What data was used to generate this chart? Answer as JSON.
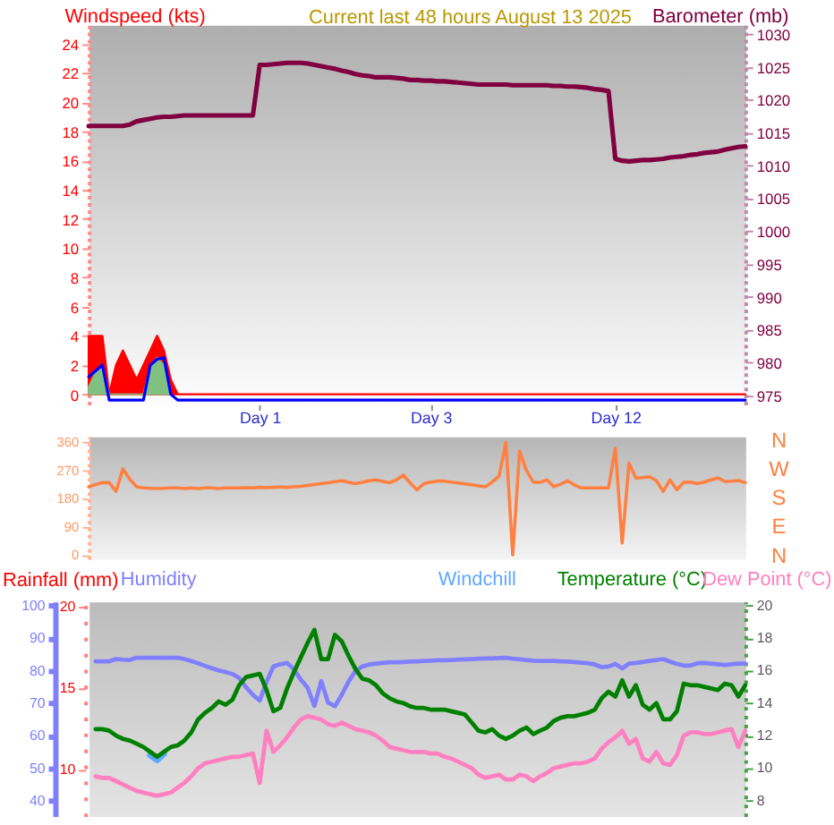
{
  "chart_data": [
    {
      "type": "line",
      "title": "Current last 48 hours August 13 2025",
      "ylabel": "Windspeed (kts)",
      "y2label": "Barometer (mb)",
      "categories": [
        null,
        null,
        null,
        null,
        null,
        null,
        null,
        null,
        null,
        null,
        null,
        null,
        null,
        null,
        null,
        null,
        null,
        null,
        null,
        null,
        null,
        null,
        null,
        null,
        null,
        "Day 1",
        null,
        null,
        null,
        null,
        null,
        null,
        null,
        null,
        null,
        null,
        null,
        null,
        null,
        null,
        null,
        null,
        null,
        null,
        null,
        null,
        null,
        null,
        null,
        null,
        "Day 3",
        null,
        null,
        null,
        null,
        null,
        null,
        null,
        null,
        null,
        null,
        null,
        null,
        null,
        null,
        null,
        null,
        null,
        null,
        null,
        null,
        null,
        null,
        null,
        null,
        null,
        null,
        "Day 12",
        null,
        null,
        null,
        null,
        null,
        null,
        null,
        null,
        null,
        null,
        null,
        null,
        null,
        null,
        null,
        null,
        null,
        null,
        null
      ],
      "ylim": [
        -0.7,
        25.3
      ],
      "yticks": [
        0,
        2,
        4,
        6,
        8,
        10,
        12,
        14,
        16,
        18,
        20,
        22,
        24
      ],
      "y2lim": [
        973.6,
        1031.4
      ],
      "y2ticks": [
        975,
        980,
        985,
        990,
        995,
        1000,
        1005,
        1010,
        1015,
        1020,
        1025,
        1030
      ],
      "series": [
        {
          "type": "area",
          "color": "#ff0000",
          "values": [
            4,
            4,
            4,
            0,
            2,
            3,
            2,
            1,
            2,
            3,
            4,
            3,
            1,
            0,
            0,
            0,
            0,
            0,
            0,
            0,
            0,
            0,
            0,
            0,
            0,
            0,
            0,
            0,
            0,
            0,
            0,
            0,
            0,
            0,
            0,
            0,
            0,
            0,
            0,
            0,
            0,
            0,
            0,
            0,
            0,
            0,
            0,
            0,
            0,
            0,
            0,
            0,
            0,
            0,
            0,
            0,
            0,
            0,
            0,
            0,
            0,
            0,
            0,
            0,
            0,
            0,
            0,
            0,
            0,
            0,
            0,
            0,
            0,
            0,
            0,
            0,
            0,
            0,
            0,
            0,
            0,
            0,
            0,
            0,
            0,
            0,
            0,
            0,
            0,
            0,
            0,
            0,
            0,
            0,
            0,
            0,
            0
          ]
        },
        {
          "type": "area",
          "color": "#80c080",
          "values": [
            0.5,
            1.5,
            2.0,
            0,
            0,
            0,
            0,
            0,
            0,
            2.0,
            2.5,
            2.0,
            0,
            null,
            null,
            null,
            null,
            null,
            null,
            null,
            null,
            null,
            null,
            null,
            null,
            null,
            null,
            null,
            null,
            null,
            null,
            null,
            null,
            null,
            null,
            null,
            null,
            null,
            null,
            null,
            null,
            null,
            null,
            null,
            null,
            null,
            null,
            null,
            null,
            null,
            null,
            null,
            null,
            null,
            null,
            null,
            null,
            null,
            null,
            null,
            null,
            null,
            null,
            null,
            null,
            null,
            null,
            null,
            null,
            null,
            null,
            null,
            null,
            null,
            null,
            null,
            null,
            null,
            null,
            null,
            null,
            null,
            null,
            null,
            null,
            null,
            null,
            null,
            null,
            null,
            null,
            null,
            null,
            null,
            null,
            null,
            null
          ]
        },
        {
          "type": "line",
          "color": "#0000ff",
          "values": [
            1.2,
            1.6,
            2.0,
            -0.4,
            -0.4,
            -0.4,
            -0.4,
            -0.4,
            -0.4,
            2.0,
            2.4,
            2.5,
            0.0,
            -0.4,
            -0.4,
            -0.4,
            -0.4,
            -0.4,
            -0.4,
            -0.4,
            -0.4,
            -0.4,
            -0.4,
            -0.4,
            -0.4,
            -0.4,
            -0.4,
            -0.4,
            -0.4,
            -0.4,
            -0.4,
            -0.4,
            -0.4,
            -0.4,
            -0.4,
            -0.4,
            -0.4,
            -0.4,
            -0.4,
            -0.4,
            -0.4,
            -0.4,
            -0.4,
            -0.4,
            -0.4,
            -0.4,
            -0.4,
            -0.4,
            -0.4,
            -0.4,
            -0.4,
            -0.4,
            -0.4,
            -0.4,
            -0.4,
            -0.4,
            -0.4,
            -0.4,
            -0.4,
            -0.4,
            -0.4,
            -0.4,
            -0.4,
            -0.4,
            -0.4,
            -0.4,
            -0.4,
            -0.4,
            -0.4,
            -0.4,
            -0.4,
            -0.4,
            -0.4,
            -0.4,
            -0.4,
            -0.4,
            -0.4,
            -0.4,
            -0.4,
            -0.4,
            -0.4,
            -0.4,
            -0.4,
            -0.4,
            -0.4,
            -0.4,
            -0.4,
            -0.4,
            -0.4,
            -0.4,
            -0.4,
            -0.4,
            -0.4,
            -0.4,
            -0.4,
            -0.4,
            -0.4
          ]
        },
        {
          "type": "line",
          "axis": "y2",
          "color": "#800040",
          "values": [
            1016.0,
            1016.0,
            1016.0,
            1016.0,
            1016.0,
            1016.0,
            1016.2,
            1016.7,
            1016.9,
            1017.1,
            1017.3,
            1017.4,
            1017.4,
            1017.5,
            1017.6,
            1017.6,
            1017.6,
            1017.6,
            1017.6,
            1017.6,
            1017.6,
            1017.6,
            1017.6,
            1017.6,
            1017.6,
            1025.3,
            1025.3,
            1025.4,
            1025.5,
            1025.6,
            1025.6,
            1025.6,
            1025.5,
            1025.3,
            1025.1,
            1024.9,
            1024.7,
            1024.4,
            1024.2,
            1023.9,
            1023.7,
            1023.6,
            1023.4,
            1023.4,
            1023.4,
            1023.3,
            1023.2,
            1023.0,
            1023.0,
            1022.9,
            1022.9,
            1022.8,
            1022.8,
            1022.7,
            1022.6,
            1022.5,
            1022.4,
            1022.3,
            1022.3,
            1022.3,
            1022.3,
            1022.3,
            1022.2,
            1022.2,
            1022.2,
            1022.2,
            1022.2,
            1022.2,
            1022.1,
            1022.1,
            1022.0,
            1022.0,
            1021.9,
            1021.8,
            1021.6,
            1021.5,
            1021.3,
            1011.0,
            1010.7,
            1010.6,
            1010.7,
            1010.8,
            1010.8,
            1010.9,
            1011.0,
            1011.2,
            1011.3,
            1011.4,
            1011.6,
            1011.7,
            1011.9,
            1012.0,
            1012.1,
            1012.4,
            1012.6,
            1012.8,
            1012.9
          ]
        }
      ]
    },
    {
      "type": "line",
      "categories": [
        null,
        null,
        null,
        null,
        null,
        null,
        null,
        null,
        null,
        null,
        null,
        null,
        null,
        null,
        null,
        null,
        null,
        null,
        null,
        null,
        null,
        null,
        null,
        null,
        null,
        null,
        null,
        null,
        null,
        null,
        null,
        null,
        null,
        null,
        null,
        null,
        null,
        null,
        null,
        null,
        null,
        null,
        null,
        null,
        null,
        null,
        null,
        null,
        null,
        null,
        null,
        null,
        null,
        null,
        null,
        null,
        null,
        null,
        null,
        null,
        null,
        null,
        null,
        null,
        null,
        null,
        null,
        null,
        null,
        null,
        null,
        null,
        null,
        null,
        null,
        null,
        null,
        null,
        null,
        null,
        null,
        null,
        null,
        null,
        null,
        null,
        null,
        null,
        null,
        null,
        null,
        null,
        null,
        null,
        null,
        null,
        null
      ],
      "ylim": [
        -13,
        379
      ],
      "yticks": [
        0,
        90,
        180,
        270,
        360
      ],
      "annotations": [
        "N",
        "W",
        "S",
        "E",
        "N"
      ],
      "series": [
        {
          "color": "#ff8040",
          "values": [
            218,
            225,
            231,
            231,
            203,
            275,
            242,
            218,
            214,
            213,
            212,
            213,
            214,
            214,
            212,
            214,
            212,
            214,
            214,
            212,
            214,
            214,
            214,
            215,
            214,
            216,
            215,
            216,
            217,
            216,
            218,
            219,
            222,
            225,
            228,
            231,
            234,
            237,
            232,
            228,
            232,
            237,
            240,
            235,
            231,
            240,
            255,
            230,
            208,
            228,
            233,
            236,
            236,
            233,
            230,
            227,
            224,
            221,
            218,
            233,
            252,
            360,
            0,
            332,
            270,
            233,
            232,
            240,
            218,
            226,
            237,
            224,
            214,
            214,
            214,
            214,
            214,
            341,
            38,
            294,
            246,
            247,
            250,
            237,
            203,
            240,
            208,
            232,
            233,
            228,
            233,
            240,
            246,
            235,
            236,
            238,
            231
          ]
        }
      ]
    },
    {
      "type": "line",
      "y3label": "Rainfall (mm)",
      "categories": [
        null,
        null,
        null,
        null,
        null,
        null,
        null,
        null,
        null,
        null,
        null,
        null,
        null,
        null,
        null,
        null,
        null,
        null,
        null,
        null,
        null,
        null,
        null,
        null,
        null,
        null,
        null,
        null,
        null,
        null,
        null,
        null,
        null,
        null,
        null,
        null,
        null,
        null,
        null,
        null,
        null,
        null,
        null,
        null,
        null,
        null,
        null,
        null,
        null,
        null,
        null,
        null,
        null,
        null,
        null,
        null,
        null,
        null,
        null,
        null,
        null,
        null,
        null,
        null,
        null,
        null,
        null,
        null,
        null,
        null,
        null,
        null,
        null,
        null,
        null,
        null,
        null,
        null,
        null,
        null,
        null,
        null,
        null,
        null,
        null,
        null,
        null,
        null,
        null,
        null,
        null,
        null,
        null,
        null,
        null,
        null,
        null
      ],
      "ylim": [
        35.3,
        101.3
      ],
      "yticks": [
        40,
        50,
        60,
        70,
        80,
        90,
        100
      ],
      "y2lim": [
        7.05,
        20.25
      ],
      "y2ticks": [
        8,
        10,
        12,
        14,
        16,
        18,
        20
      ],
      "y3lim": [
        7.17,
        20.3
      ],
      "y3ticks": [
        10,
        15,
        20
      ],
      "series": [
        {
          "name": "Humidity",
          "color": "#8080ff",
          "values": [
            null,
            82.9,
            82.9,
            82.9,
            83.6,
            83.4,
            83.3,
            84,
            84,
            84,
            84,
            84,
            84,
            84,
            83.6,
            83.0,
            82.3,
            81.5,
            80.8,
            80.1,
            79.6,
            79.0,
            77.8,
            74.9,
            72.6,
            70.8,
            76.6,
            81.3,
            82.0,
            82.4,
            80.4,
            77.3,
            74.8,
            69.2,
            76.8,
            70.2,
            69.1,
            72.6,
            76.7,
            79.9,
            81.3,
            81.9,
            82.2,
            82.4,
            82.6,
            82.6,
            82.7,
            82.8,
            82.9,
            83.0,
            83.1,
            83.2,
            83.2,
            83.3,
            83.4,
            83.5,
            83.6,
            83.7,
            83.8,
            83.8,
            83.9,
            84.0,
            83.7,
            83.5,
            83.3,
            83.1,
            83.0,
            83.0,
            83.0,
            82.9,
            82.8,
            82.7,
            82.5,
            82.3,
            81.9,
            81.1,
            81.3,
            82.1,
            80.7,
            82.2,
            82.4,
            82.7,
            83.0,
            83.3,
            83.6,
            82.8,
            82.1,
            81.6,
            81.6,
            82.3,
            82.4,
            82.2,
            82.0,
            81.8,
            82.0,
            82.2,
            82.2
          ]
        },
        {
          "name": "Windchill",
          "axis": "y2",
          "color": "#60a8ff",
          "values": [
            null,
            null,
            null,
            null,
            null,
            null,
            null,
            null,
            null,
            10.8,
            10.5,
            10.9,
            null,
            null,
            null,
            null,
            null,
            null,
            null,
            null,
            null,
            null,
            null,
            null,
            null,
            null,
            null,
            null,
            null,
            null,
            null,
            null,
            null,
            null,
            null,
            null,
            null,
            null,
            null,
            null,
            null,
            null,
            null,
            null,
            null,
            null,
            null,
            null,
            null,
            null,
            null,
            null,
            null,
            null,
            null,
            null,
            null,
            null,
            null,
            null,
            null,
            null,
            null,
            null,
            null,
            null,
            null,
            null,
            null,
            null,
            null,
            null,
            null,
            null,
            null,
            null,
            null,
            null,
            null,
            null,
            null,
            null,
            null,
            null,
            null,
            null,
            null,
            null,
            null,
            null,
            null,
            null,
            null,
            null,
            null,
            null,
            null
          ]
        },
        {
          "name": "Temperature (°C)",
          "axis": "y2",
          "color": "#008000",
          "values": [
            null,
            12.4,
            12.4,
            12.3,
            12.0,
            11.8,
            11.7,
            11.5,
            11.3,
            11.0,
            10.7,
            11.0,
            11.3,
            11.4,
            11.7,
            12.2,
            13.0,
            13.4,
            13.7,
            14.1,
            13.9,
            14.2,
            15.1,
            15.6,
            15.7,
            15.8,
            14.8,
            13.5,
            13.7,
            14.9,
            15.9,
            16.8,
            17.7,
            18.5,
            16.7,
            16.7,
            18.2,
            17.8,
            16.9,
            16.1,
            15.5,
            15.4,
            15.1,
            14.6,
            14.3,
            14.1,
            14.0,
            13.8,
            13.7,
            13.7,
            13.6,
            13.6,
            13.6,
            13.5,
            13.4,
            13.3,
            12.8,
            12.3,
            12.2,
            12.4,
            12.0,
            11.8,
            12.0,
            12.3,
            12.5,
            12.1,
            12.3,
            12.5,
            12.9,
            13.1,
            13.2,
            13.2,
            13.3,
            13.4,
            13.6,
            14.3,
            14.7,
            14.4,
            15.4,
            14.4,
            15.1,
            13.9,
            13.6,
            14.0,
            13.0,
            13.0,
            13.5,
            15.2,
            15.1,
            15.1,
            15.0,
            14.9,
            14.8,
            15.2,
            15.1,
            14.4,
            15.1
          ]
        },
        {
          "name": "Dew Point (°C)",
          "axis": "y2",
          "color": "#ff80c0",
          "values": [
            null,
            9.5,
            9.4,
            9.4,
            9.2,
            9.0,
            8.8,
            8.6,
            8.5,
            8.4,
            8.3,
            8.4,
            8.5,
            8.8,
            9.1,
            9.5,
            10.0,
            10.3,
            10.4,
            10.5,
            10.6,
            10.7,
            10.7,
            10.8,
            10.9,
            9.1,
            12.3,
            11.0,
            11.4,
            11.9,
            12.5,
            13.0,
            13.2,
            13.1,
            13.0,
            12.7,
            12.6,
            12.8,
            12.6,
            12.4,
            12.3,
            12.2,
            12.0,
            11.7,
            11.3,
            11.2,
            11.1,
            11.0,
            11.0,
            11.0,
            10.9,
            10.9,
            10.7,
            10.6,
            10.4,
            10.2,
            10.0,
            9.6,
            9.4,
            9.5,
            9.6,
            9.3,
            9.3,
            9.6,
            9.5,
            9.2,
            9.5,
            9.7,
            10.0,
            10.1,
            10.2,
            10.3,
            10.3,
            10.4,
            10.6,
            11.2,
            11.6,
            11.9,
            12.3,
            11.5,
            11.8,
            10.6,
            10.4,
            11.0,
            10.3,
            10.2,
            10.8,
            12.0,
            12.2,
            12.2,
            12.1,
            12.1,
            12.2,
            12.3,
            12.4,
            11.3,
            12.3
          ]
        }
      ]
    }
  ]
}
